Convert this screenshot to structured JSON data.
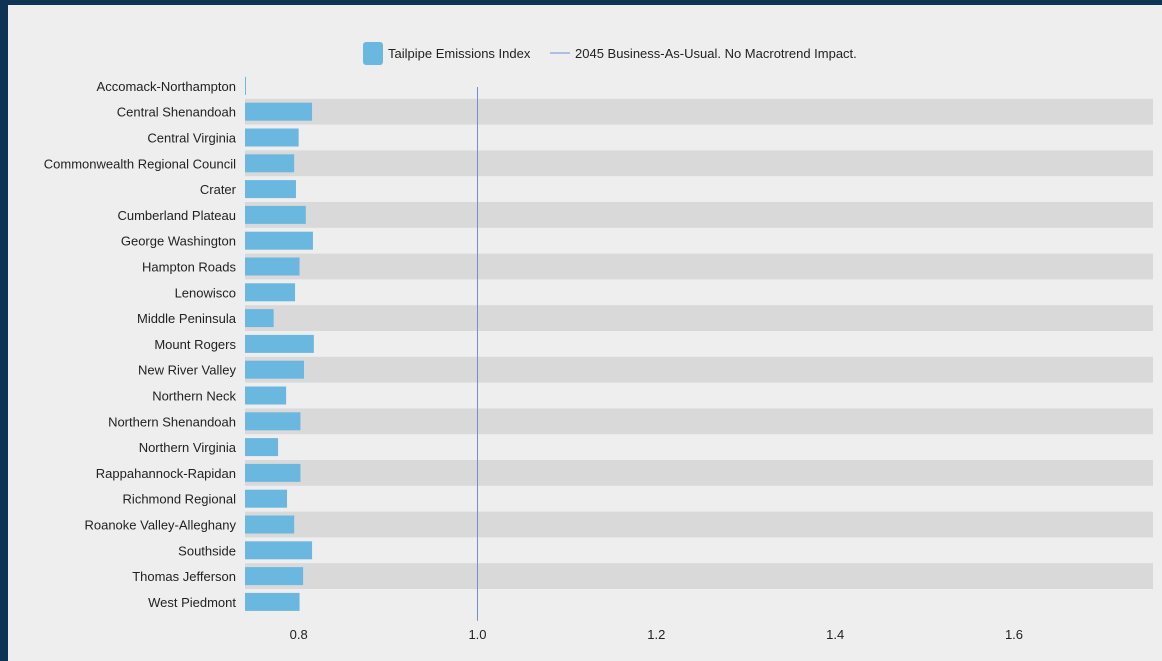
{
  "chart_data": {
    "type": "bar",
    "orientation": "horizontal",
    "title": "",
    "xlabel": "",
    "ylabel": "",
    "xlim": [
      0.74,
      1.75
    ],
    "xticks": [
      0.8,
      1.0,
      1.2,
      1.4,
      1.6
    ],
    "xtick_labels": [
      "0.8",
      "1.0",
      "1.2",
      "1.4",
      "1.6"
    ],
    "categories": [
      "Accomack-Northampton",
      "Central Shenandoah",
      "Central Virginia",
      "Commonwealth Regional Council",
      "Crater",
      "Cumberland Plateau",
      "George Washington",
      "Hampton Roads",
      "Lenowisco",
      "Middle Peninsula",
      "Mount Rogers",
      "New River Valley",
      "Northern Neck",
      "Northern Shenandoah",
      "Northern Virginia",
      "Rappahannock-Rapidan",
      "Richmond Regional",
      "Roanoke Valley-Alleghany",
      "Southside",
      "Thomas Jefferson",
      "West Piedmont"
    ],
    "series": [
      {
        "name": "Tailpipe Emissions Index",
        "color": "#6ab8e0",
        "values": [
          0.74,
          0.815,
          0.8,
          0.795,
          0.797,
          0.808,
          0.816,
          0.801,
          0.796,
          0.772,
          0.817,
          0.806,
          0.786,
          0.802,
          0.777,
          0.802,
          0.787,
          0.795,
          0.815,
          0.805,
          0.801
        ]
      }
    ],
    "reference_line": {
      "name": "2045 Business-As-Usual. No Macrotrend Impact.",
      "value": 1.0,
      "color": "#7090d0"
    },
    "band_color": "#d9d9d9",
    "grid": false,
    "legend": "top-center"
  }
}
